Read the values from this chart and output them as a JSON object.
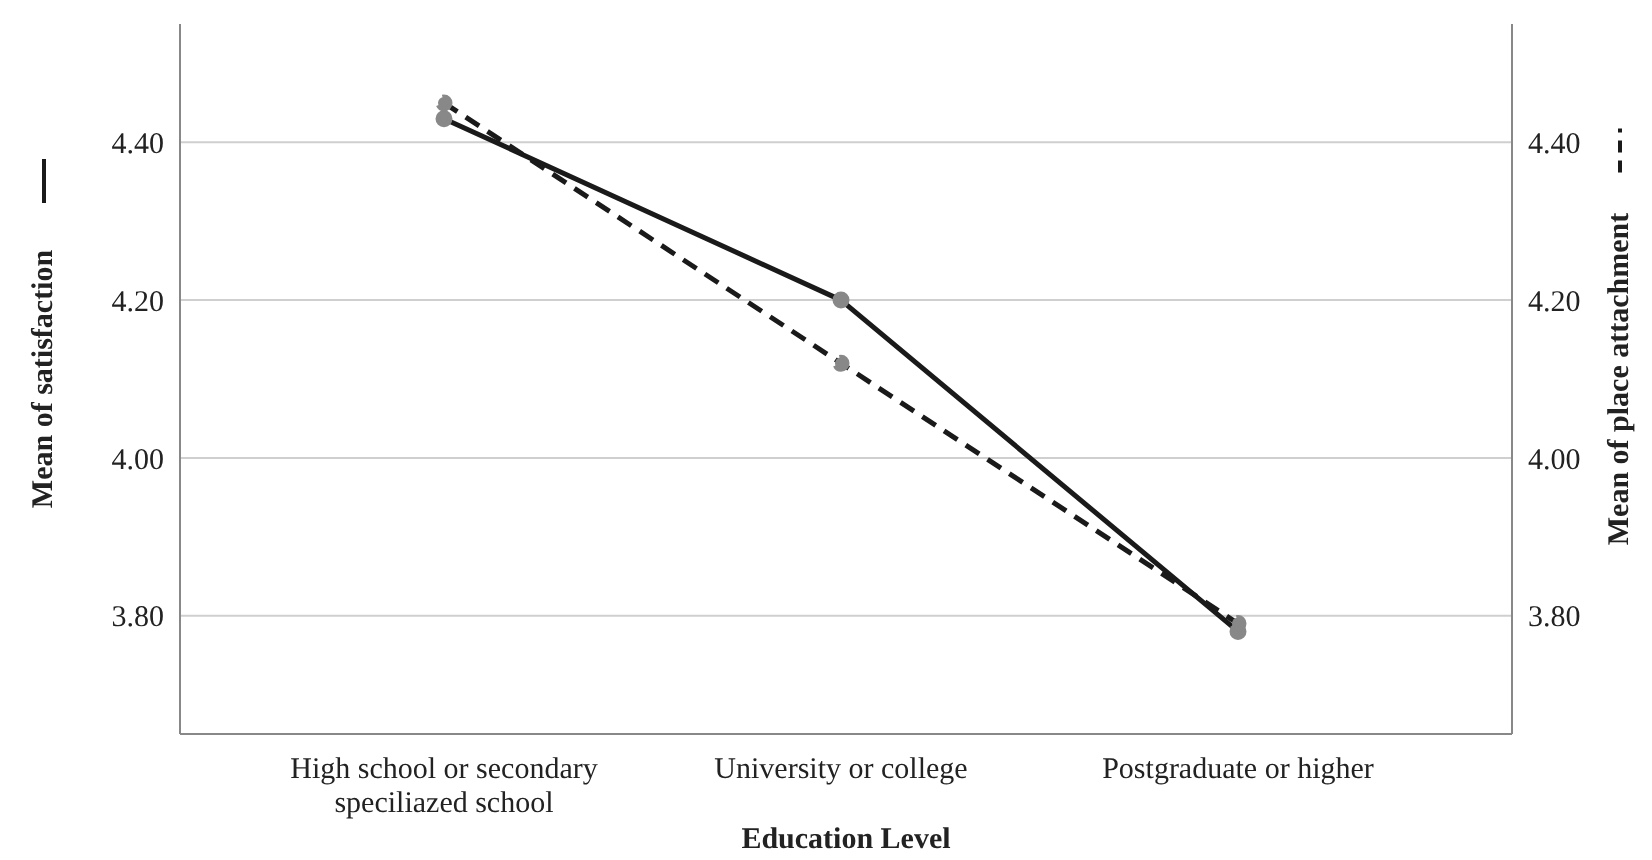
{
  "chart_data": {
    "type": "line",
    "xlabel": "Education Level",
    "ylabel": "Mean of satisfaction",
    "y2label": "Mean of place attachment",
    "categories": [
      "High school or secondary speciliazed school",
      "University or college",
      "Postgraduate or higher"
    ],
    "series": [
      {
        "color": "#1a1a1a",
        "line_style": "solid",
        "values": [
          4.43,
          4.2,
          3.78
        ]
      },
      {
        "color": "#1a1a1a",
        "line_style": "dashed",
        "axis": "y2",
        "values": [
          4.45,
          4.12,
          3.79
        ]
      }
    ],
    "ylim": [
      3.65,
      4.55
    ],
    "yticks": [
      {
        "value": 3.8,
        "label": "3.80"
      },
      {
        "value": 4.0,
        "label": "4.00"
      },
      {
        "value": 4.2,
        "label": "4.20"
      },
      {
        "value": 4.4,
        "label": "4.40"
      }
    ],
    "y2lim": [
      3.65,
      4.55
    ],
    "y2ticks": [
      {
        "value": 3.8,
        "label": "3.80"
      },
      {
        "value": 4.0,
        "label": "4.00"
      },
      {
        "value": 4.2,
        "label": "4.20"
      },
      {
        "value": 4.4,
        "label": "4.40"
      }
    ],
    "grid": "y",
    "marker": "circle"
  }
}
